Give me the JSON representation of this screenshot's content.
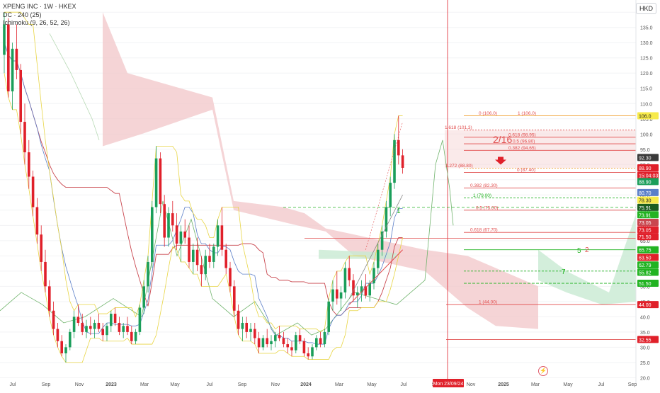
{
  "legend": {
    "title": "XPENG INC · 1W · HKEX",
    "dc": "DC · 240 (25)",
    "ichimoku": "Ichimoku (9, 26, 52, 26)"
  },
  "currency_button": "HKD",
  "colors": {
    "up": "#1b9e5a",
    "down": "#e0202a",
    "cloud_bear": "#f2c6c8",
    "cloud_bull": "#c8ead2",
    "lagging_span": "#6fb36b",
    "base_line": "#c9474f",
    "conversion_line": "#5b7fc8",
    "donchian": "#e8d544",
    "fib": "#e14b4b",
    "support_green": "#22b322"
  },
  "chart_data": {
    "type": "candlestick",
    "title": "XPENG INC · 1W · HKEX",
    "currency": "HKD",
    "ylim": [
      18,
      144
    ],
    "y_ticks": [
      140,
      135,
      130,
      125,
      120,
      115,
      110,
      105,
      100,
      95,
      90,
      85,
      80,
      75,
      70,
      65,
      60,
      55,
      50,
      45,
      40,
      35,
      30,
      25,
      20
    ],
    "x_ticks": [
      "Jul",
      "Sep",
      "Nov",
      "2023",
      "Mar",
      "May",
      "Jul",
      "Sep",
      "Nov",
      "2024",
      "Mar",
      "May",
      "Jul",
      "Sep",
      "Nov",
      "2025",
      "Mar",
      "May",
      "Jul",
      "Sep"
    ],
    "crosshair_date": "Mon 23/09/24",
    "price_levels_right_axis": [
      {
        "value": 106.0,
        "label": "106.0",
        "bg": "#f7ea4a",
        "fg": "#222222"
      },
      {
        "value": 92.3,
        "label": "92.30",
        "bg": "#3a3a3a",
        "fg": "#ffffff"
      },
      {
        "value": 88.9,
        "label": "88.90",
        "bg": "#e0202a",
        "fg": "#ffffff"
      },
      {
        "value": 86.5,
        "label": "15:04:03",
        "bg": "#e0202a",
        "fg": "#ffffff"
      },
      {
        "value": 84.4,
        "label": "88.90",
        "bg": "#1b9e5a",
        "fg": "#ffffff"
      },
      {
        "value": 80.8,
        "label": "80.70",
        "bg": "#5b7fc8",
        "fg": "#ffffff"
      },
      {
        "value": 78.3,
        "label": "78.30",
        "bg": "#f7ea4a",
        "fg": "#222222"
      },
      {
        "value": 75.91,
        "label": "75.91",
        "bg": "#1b5e20",
        "fg": "#ffffff"
      },
      {
        "value": 73.5,
        "label": "73.91",
        "bg": "#22b322",
        "fg": "#ffffff"
      },
      {
        "value": 71.0,
        "label": "73.05",
        "bg": "#c9474f",
        "fg": "#ffffff"
      },
      {
        "value": 68.6,
        "label": "73.05",
        "bg": "#e0202a",
        "fg": "#ffffff"
      },
      {
        "value": 66.3,
        "label": "71.50",
        "bg": "#e0202a",
        "fg": "#ffffff"
      },
      {
        "value": 62.0,
        "label": "65.75",
        "bg": "#22b322",
        "fg": "#ffffff"
      },
      {
        "value": 59.5,
        "label": "63.50",
        "bg": "#e0202a",
        "fg": "#ffffff"
      },
      {
        "value": 57.0,
        "label": "62.79",
        "bg": "#22b322",
        "fg": "#ffffff"
      },
      {
        "value": 54.6,
        "label": "55.82",
        "bg": "#22b322",
        "fg": "#ffffff"
      },
      {
        "value": 51.0,
        "label": "51.50",
        "bg": "#22b322",
        "fg": "#ffffff"
      },
      {
        "value": 44.0,
        "label": "44.00",
        "bg": "#e0202a",
        "fg": "#ffffff"
      },
      {
        "value": 32.55,
        "label": "32.55",
        "bg": "#e0202a",
        "fg": "#ffffff"
      }
    ],
    "fib_levels": [
      {
        "label": "0 (106.0)",
        "value": 106.0
      },
      {
        "label": "1 (106.0)",
        "value": 106.0
      },
      {
        "label": "1.618 (101.3)",
        "value": 101.3
      },
      {
        "label": "0.618 (98.95)",
        "value": 98.95
      },
      {
        "label": "0.5 (96.80)",
        "value": 96.8
      },
      {
        "label": "0.382 (94.65)",
        "value": 94.65
      },
      {
        "label": "1.272 (88.80)",
        "value": 88.8
      },
      {
        "label": "0 (87.40)",
        "value": 87.4
      },
      {
        "label": "0.382 (82.30)",
        "value": 82.3
      },
      {
        "label": "1 (79.00)",
        "value": 79.0
      },
      {
        "label": "0.5 (75.00)",
        "value": 75.0
      },
      {
        "label": "0.618 (67.70)",
        "value": 67.7
      },
      {
        "label": "1 (44.00)",
        "value": 44.0
      }
    ],
    "annotations": [
      {
        "text": "2/16",
        "color": "#e14b4b"
      },
      {
        "text": "1",
        "color": "#22b322"
      },
      {
        "text": "5",
        "color": "#22b322"
      },
      {
        "text": "2",
        "color": "#e14b4b"
      },
      {
        "text": "7",
        "color": "#22b322"
      }
    ],
    "candles": [
      [
        126,
        140,
        120,
        136
      ],
      [
        136,
        138,
        112,
        114
      ],
      [
        114,
        130,
        108,
        128
      ],
      [
        128,
        136,
        118,
        121
      ],
      [
        121,
        123,
        100,
        104
      ],
      [
        104,
        110,
        90,
        94
      ],
      [
        94,
        98,
        82,
        86
      ],
      [
        86,
        88,
        73,
        76
      ],
      [
        76,
        79,
        64,
        67
      ],
      [
        67,
        70,
        55,
        58
      ],
      [
        58,
        62,
        48,
        50
      ],
      [
        50,
        52,
        40,
        42
      ],
      [
        42,
        45,
        34,
        36
      ],
      [
        36,
        38,
        30,
        32
      ],
      [
        32,
        34,
        27,
        28
      ],
      [
        28,
        31,
        25,
        30
      ],
      [
        30,
        36,
        29,
        35
      ],
      [
        35,
        42,
        33,
        40
      ],
      [
        40,
        44,
        37,
        38
      ],
      [
        38,
        41,
        34,
        35
      ],
      [
        35,
        39,
        33,
        37
      ],
      [
        37,
        40,
        34,
        36
      ],
      [
        36,
        39,
        33,
        38
      ],
      [
        38,
        41,
        35,
        36
      ],
      [
        36,
        38,
        32,
        34
      ],
      [
        34,
        38,
        32,
        37
      ],
      [
        37,
        42,
        35,
        41
      ],
      [
        41,
        43,
        37,
        38
      ],
      [
        38,
        40,
        34,
        35
      ],
      [
        35,
        38,
        33,
        37
      ],
      [
        37,
        40,
        34,
        35
      ],
      [
        35,
        37,
        31,
        32
      ],
      [
        32,
        36,
        31,
        35
      ],
      [
        35,
        44,
        34,
        43
      ],
      [
        43,
        52,
        41,
        50
      ],
      [
        50,
        60,
        48,
        58
      ],
      [
        58,
        78,
        56,
        76
      ],
      [
        76,
        96,
        74,
        92
      ],
      [
        92,
        94,
        74,
        77
      ],
      [
        77,
        80,
        63,
        66
      ],
      [
        66,
        76,
        63,
        74
      ],
      [
        74,
        78,
        68,
        70
      ],
      [
        70,
        74,
        62,
        64
      ],
      [
        64,
        70,
        58,
        68
      ],
      [
        68,
        72,
        64,
        66
      ],
      [
        66,
        70,
        56,
        58
      ],
      [
        58,
        64,
        54,
        62
      ],
      [
        62,
        66,
        55,
        57
      ],
      [
        57,
        60,
        50,
        54
      ],
      [
        54,
        62,
        52,
        60
      ],
      [
        60,
        64,
        56,
        58
      ],
      [
        58,
        64,
        56,
        63
      ],
      [
        63,
        72,
        60,
        70
      ],
      [
        70,
        76,
        60,
        62
      ],
      [
        62,
        64,
        54,
        56
      ],
      [
        56,
        58,
        48,
        50
      ],
      [
        50,
        52,
        40,
        42
      ],
      [
        42,
        44,
        34,
        36
      ],
      [
        36,
        40,
        32,
        38
      ],
      [
        38,
        40,
        33,
        35
      ],
      [
        35,
        38,
        32,
        36
      ],
      [
        36,
        38,
        31,
        33
      ],
      [
        33,
        35,
        28,
        30
      ],
      [
        30,
        34,
        29,
        33
      ],
      [
        33,
        36,
        30,
        31
      ],
      [
        31,
        34,
        29,
        32
      ],
      [
        32,
        35,
        30,
        34
      ],
      [
        34,
        37,
        32,
        33
      ],
      [
        33,
        35,
        30,
        31
      ],
      [
        31,
        33,
        28,
        30
      ],
      [
        30,
        32,
        27,
        29
      ],
      [
        29,
        35,
        28,
        34
      ],
      [
        34,
        36,
        31,
        32
      ],
      [
        32,
        33,
        27,
        28
      ],
      [
        28,
        30,
        26,
        27
      ],
      [
        27,
        31,
        26,
        30
      ],
      [
        30,
        34,
        29,
        33
      ],
      [
        33,
        35,
        30,
        31
      ],
      [
        31,
        36,
        30,
        35
      ],
      [
        35,
        46,
        34,
        45
      ],
      [
        45,
        52,
        42,
        49
      ],
      [
        49,
        55,
        44,
        46
      ],
      [
        46,
        50,
        42,
        48
      ],
      [
        48,
        58,
        46,
        56
      ],
      [
        56,
        60,
        50,
        52
      ],
      [
        52,
        54,
        45,
        47
      ],
      [
        47,
        50,
        43,
        48
      ],
      [
        48,
        52,
        45,
        50
      ],
      [
        50,
        54,
        46,
        47
      ],
      [
        47,
        52,
        45,
        51
      ],
      [
        51,
        58,
        49,
        56
      ],
      [
        56,
        64,
        54,
        62
      ],
      [
        62,
        70,
        60,
        68
      ],
      [
        68,
        78,
        66,
        76
      ],
      [
        76,
        86,
        73,
        84
      ],
      [
        84,
        100,
        82,
        98
      ],
      [
        98,
        106,
        90,
        93
      ],
      [
        93,
        95,
        87,
        88.9
      ]
    ]
  }
}
